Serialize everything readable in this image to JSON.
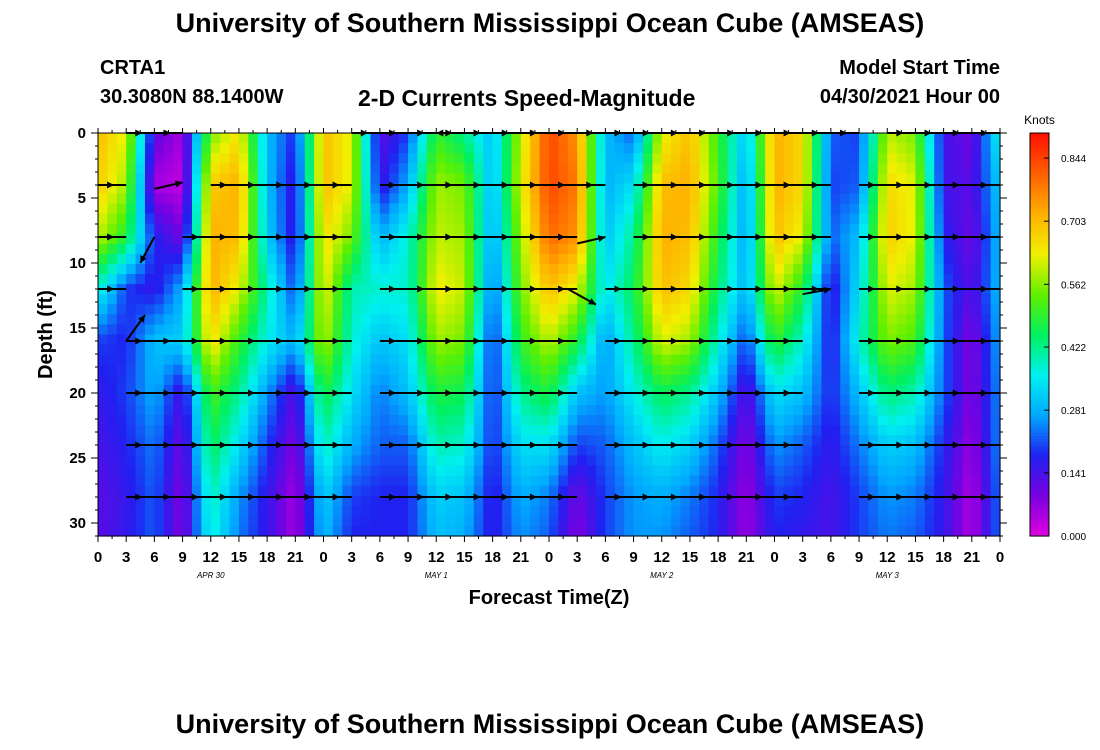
{
  "header": {
    "title": "University of Southern Mississippi Ocean Cube (AMSEAS)",
    "station": "CRTA1",
    "coordinates": "30.3080N  88.1400W",
    "subtitle": "2-D Currents Speed-Magnitude",
    "model_start_label": "Model Start Time",
    "model_start_value": "04/30/2021 Hour 00"
  },
  "footer": {
    "title": "University of Southern Mississippi Ocean Cube (AMSEAS)"
  },
  "chart_data": {
    "type": "heatmap",
    "xlabel": "Forecast Time(Z)",
    "ylabel": "Depth (ft)",
    "colorbar_label": "Knots",
    "x_range_hours": [
      0,
      96
    ],
    "y_range_ft": [
      0,
      31
    ],
    "y_inverted": true,
    "x_tick_labels": [
      "0",
      "3",
      "6",
      "9",
      "12",
      "15",
      "18",
      "21",
      "0",
      "3",
      "6",
      "9",
      "12",
      "15",
      "18",
      "21",
      "0",
      "3",
      "6",
      "9",
      "12",
      "15",
      "18",
      "21",
      "0",
      "3",
      "6",
      "9",
      "12",
      "15",
      "18",
      "21",
      "0"
    ],
    "date_labels": [
      {
        "text": "APR 30",
        "hour": 12
      },
      {
        "text": "MAY 1",
        "hour": 36
      },
      {
        "text": "MAY 2",
        "hour": 60
      },
      {
        "text": "MAY 3",
        "hour": 84
      }
    ],
    "y_ticks": [
      0,
      5,
      10,
      15,
      20,
      25,
      30
    ],
    "colorbar_ticks": [
      0.844,
      0.703,
      0.562,
      0.422,
      0.281,
      0.141,
      0.0
    ],
    "colorbar_tick_labels": [
      "0.844",
      "0.703",
      "0.562",
      "0.422",
      "0.281",
      "0.141",
      "0.000"
    ],
    "colorbar_range": [
      0.0,
      0.9
    ],
    "colormap": [
      "#e000e0",
      "#7a00e0",
      "#2020f0",
      "#00a8ff",
      "#00f0f0",
      "#00f060",
      "#60f000",
      "#f0f000",
      "#ffb000",
      "#ff6000",
      "#ff1000"
    ],
    "speed_grid": {
      "depths": [
        0,
        4,
        8,
        12,
        16,
        20,
        24,
        28,
        31
      ],
      "hours": [
        0,
        3,
        6,
        9,
        12,
        15,
        18,
        21,
        24,
        27,
        30,
        33,
        36,
        39,
        42,
        45,
        48,
        51,
        54,
        57,
        60,
        63,
        66,
        69,
        72,
        75,
        78,
        81,
        84,
        87,
        90,
        93,
        96
      ],
      "values": [
        [
          0.7,
          0.62,
          0.12,
          0.05,
          0.55,
          0.65,
          0.3,
          0.18,
          0.7,
          0.62,
          0.12,
          0.2,
          0.5,
          0.42,
          0.3,
          0.6,
          0.84,
          0.75,
          0.3,
          0.22,
          0.62,
          0.7,
          0.5,
          0.3,
          0.72,
          0.66,
          0.22,
          0.2,
          0.6,
          0.55,
          0.15,
          0.1,
          0.38
        ],
        [
          0.68,
          0.58,
          0.05,
          0.03,
          0.68,
          0.72,
          0.3,
          0.15,
          0.7,
          0.62,
          0.15,
          0.28,
          0.58,
          0.55,
          0.28,
          0.62,
          0.84,
          0.78,
          0.28,
          0.34,
          0.7,
          0.72,
          0.52,
          0.26,
          0.72,
          0.66,
          0.2,
          0.22,
          0.66,
          0.62,
          0.15,
          0.12,
          0.32
        ],
        [
          0.6,
          0.48,
          0.18,
          0.1,
          0.72,
          0.7,
          0.32,
          0.15,
          0.66,
          0.55,
          0.28,
          0.38,
          0.6,
          0.58,
          0.26,
          0.58,
          0.8,
          0.75,
          0.3,
          0.42,
          0.72,
          0.7,
          0.48,
          0.26,
          0.7,
          0.62,
          0.22,
          0.3,
          0.68,
          0.62,
          0.18,
          0.1,
          0.3
        ],
        [
          0.38,
          0.2,
          0.16,
          0.28,
          0.72,
          0.62,
          0.4,
          0.2,
          0.64,
          0.4,
          0.38,
          0.38,
          0.64,
          0.6,
          0.22,
          0.55,
          0.7,
          0.62,
          0.34,
          0.46,
          0.7,
          0.66,
          0.44,
          0.28,
          0.62,
          0.48,
          0.15,
          0.34,
          0.62,
          0.58,
          0.22,
          0.12,
          0.3
        ],
        [
          0.2,
          0.18,
          0.3,
          0.32,
          0.66,
          0.5,
          0.36,
          0.28,
          0.6,
          0.38,
          0.3,
          0.34,
          0.58,
          0.55,
          0.18,
          0.5,
          0.6,
          0.48,
          0.26,
          0.42,
          0.62,
          0.58,
          0.38,
          0.2,
          0.5,
          0.38,
          0.16,
          0.38,
          0.56,
          0.52,
          0.22,
          0.08,
          0.28
        ],
        [
          0.16,
          0.2,
          0.28,
          0.14,
          0.52,
          0.42,
          0.26,
          0.12,
          0.48,
          0.34,
          0.24,
          0.3,
          0.48,
          0.46,
          0.18,
          0.42,
          0.48,
          0.3,
          0.26,
          0.36,
          0.46,
          0.42,
          0.3,
          0.12,
          0.34,
          0.3,
          0.18,
          0.3,
          0.44,
          0.4,
          0.22,
          0.08,
          0.26
        ],
        [
          0.14,
          0.18,
          0.24,
          0.1,
          0.46,
          0.34,
          0.2,
          0.08,
          0.4,
          0.28,
          0.22,
          0.22,
          0.4,
          0.38,
          0.18,
          0.34,
          0.34,
          0.2,
          0.22,
          0.3,
          0.36,
          0.32,
          0.22,
          0.08,
          0.26,
          0.22,
          0.16,
          0.24,
          0.32,
          0.3,
          0.18,
          0.06,
          0.26
        ],
        [
          0.12,
          0.16,
          0.22,
          0.08,
          0.4,
          0.26,
          0.16,
          0.05,
          0.32,
          0.2,
          0.18,
          0.18,
          0.32,
          0.3,
          0.16,
          0.28,
          0.24,
          0.1,
          0.2,
          0.26,
          0.28,
          0.24,
          0.18,
          0.06,
          0.2,
          0.18,
          0.14,
          0.2,
          0.26,
          0.24,
          0.16,
          0.04,
          0.24
        ],
        [
          0.12,
          0.16,
          0.22,
          0.08,
          0.38,
          0.24,
          0.16,
          0.05,
          0.3,
          0.18,
          0.18,
          0.18,
          0.3,
          0.28,
          0.16,
          0.26,
          0.22,
          0.08,
          0.2,
          0.26,
          0.26,
          0.22,
          0.18,
          0.06,
          0.18,
          0.16,
          0.14,
          0.2,
          0.24,
          0.22,
          0.16,
          0.04,
          0.24
        ]
      ]
    },
    "vector_rows": [
      {
        "depth": 0,
        "segments": [
          [
            3,
            9
          ],
          [
            27,
            39
          ],
          [
            39,
            51
          ],
          [
            51,
            57
          ],
          [
            57,
            72
          ],
          [
            72,
            81
          ],
          [
            84,
            96
          ]
        ]
      },
      {
        "depth": 4,
        "segments": [
          [
            0,
            3
          ],
          [
            12,
            27
          ],
          [
            30,
            54
          ],
          [
            57,
            78
          ],
          [
            81,
            96
          ]
        ]
      },
      {
        "depth": 8,
        "segments": [
          [
            0,
            3
          ],
          [
            9,
            27
          ],
          [
            30,
            51
          ],
          [
            57,
            78
          ],
          [
            81,
            96
          ]
        ]
      },
      {
        "depth": 12,
        "segments": [
          [
            0,
            3
          ],
          [
            9,
            27
          ],
          [
            30,
            51
          ],
          [
            54,
            78
          ],
          [
            81,
            96
          ]
        ]
      },
      {
        "depth": 16,
        "segments": [
          [
            3,
            27
          ],
          [
            30,
            51
          ],
          [
            54,
            75
          ],
          [
            81,
            96
          ]
        ]
      },
      {
        "depth": 20,
        "segments": [
          [
            3,
            27
          ],
          [
            30,
            51
          ],
          [
            54,
            75
          ],
          [
            81,
            96
          ]
        ]
      },
      {
        "depth": 24,
        "segments": [
          [
            3,
            27
          ],
          [
            30,
            51
          ],
          [
            54,
            75
          ],
          [
            81,
            96
          ]
        ]
      },
      {
        "depth": 28,
        "segments": [
          [
            3,
            27
          ],
          [
            30,
            51
          ],
          [
            54,
            75
          ],
          [
            81,
            96
          ]
        ]
      }
    ],
    "diagonal_vectors": [
      {
        "from": [
          6,
          8
        ],
        "to": [
          4.5,
          10
        ]
      },
      {
        "from": [
          3,
          16
        ],
        "to": [
          5,
          14
        ]
      },
      {
        "from": [
          6,
          4.3
        ],
        "to": [
          9,
          3.8
        ]
      },
      {
        "from": [
          38,
          0
        ],
        "to": [
          36,
          0
        ]
      },
      {
        "from": [
          50,
          12
        ],
        "to": [
          53,
          13.2
        ]
      },
      {
        "from": [
          51,
          8.5
        ],
        "to": [
          54,
          8
        ]
      },
      {
        "from": [
          75,
          12.4
        ],
        "to": [
          78,
          12
        ]
      }
    ]
  }
}
